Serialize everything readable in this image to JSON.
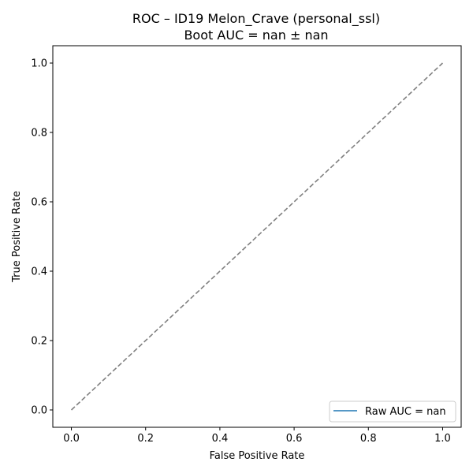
{
  "chart_data": {
    "type": "line",
    "title": "ROC – ID19 Melon_Crave (personal_ssl)",
    "subtitle": "Boot AUC = nan ± nan",
    "xlabel": "False Positive Rate",
    "ylabel": "True Positive Rate",
    "xlim": [
      -0.05,
      1.05
    ],
    "ylim": [
      -0.05,
      1.05
    ],
    "xticks": [
      "0.0",
      "0.2",
      "0.4",
      "0.6",
      "0.8",
      "1.0"
    ],
    "yticks": [
      "0.0",
      "0.2",
      "0.4",
      "0.6",
      "0.8",
      "1.0"
    ],
    "grid": false,
    "legend_position": "lower-right",
    "series": [
      {
        "name": "Raw AUC = nan",
        "color": "#1f77b4",
        "style": "solid",
        "x": [],
        "y": []
      }
    ],
    "reference_line": {
      "color": "#808080",
      "style": "dashed",
      "x": [
        0,
        1
      ],
      "y": [
        0,
        1
      ]
    }
  }
}
